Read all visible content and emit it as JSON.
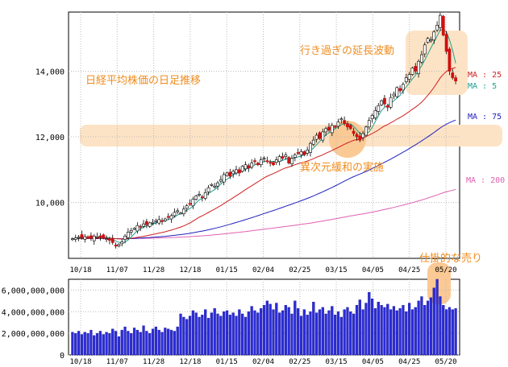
{
  "chart_data": [
    {
      "type": "candlestick",
      "ylim": [
        8300,
        15800
      ],
      "y_ticks": [
        "10,000",
        "12,000",
        "14,000"
      ],
      "y_tick_values": [
        10000,
        12000,
        14000
      ],
      "x_ticks": [
        "10/18",
        "11/07",
        "11/28",
        "12/18",
        "01/15",
        "02/04",
        "02/25",
        "03/15",
        "04/05",
        "04/25",
        "05/20"
      ],
      "close": [
        8900,
        8920,
        8950,
        8930,
        8960,
        8940,
        8910,
        8980,
        8960,
        8940,
        8920,
        8900,
        8850,
        8780,
        8700,
        8720,
        8800,
        8980,
        9100,
        9150,
        9210,
        9300,
        9250,
        9350,
        9320,
        9380,
        9400,
        9450,
        9480,
        9420,
        9500,
        9550,
        9600,
        9700,
        9750,
        9680,
        9800,
        9900,
        9950,
        10100,
        10200,
        10250,
        10150,
        10300,
        10450,
        10550,
        10500,
        10600,
        10700,
        10850,
        10900,
        10800,
        10950,
        11000,
        10900,
        11100,
        11150,
        11050,
        11200,
        11250,
        11150,
        11300,
        11350,
        11250,
        11200,
        11150,
        11300,
        11400,
        11350,
        11450,
        11200,
        11350,
        11450,
        11500,
        11550,
        11450,
        11600,
        11800,
        11900,
        12050,
        11950,
        12150,
        12250,
        12200,
        12350,
        12300,
        12450,
        12550,
        12400,
        12300,
        12250,
        12100,
        12000,
        11900,
        12100,
        12300,
        12500,
        12650,
        12800,
        12950,
        13100,
        13000,
        12900,
        13200,
        13300,
        13500,
        13400,
        13600,
        13800,
        13900,
        14100,
        14000,
        14300,
        14500,
        14800,
        15000,
        14950,
        15200,
        15400,
        15700,
        15100,
        14600,
        14000,
        13800,
        13700
      ],
      "ma_labels": [
        "MA : 25",
        "MA : 5",
        "MA : 75",
        "MA : 200"
      ],
      "ma_colors": [
        "#d02020",
        "#20a090",
        "#2020c0",
        "#e060b0"
      ],
      "annotations": [
        "日経平均株価の日足推移",
        "行き過ぎの延長波動",
        "異次元緩和の実施"
      ]
    },
    {
      "type": "bar",
      "ylim": [
        0,
        7000000000
      ],
      "y_ticks": [
        "0",
        "2,000,000,000",
        "4,000,000,000",
        "6,000,000,000"
      ],
      "y_tick_values": [
        0,
        2000000000,
        4000000000,
        6000000000
      ],
      "x_ticks": [
        "10/18",
        "11/07",
        "11/28",
        "12/18",
        "01/15",
        "02/04",
        "02/25",
        "03/15",
        "04/05",
        "04/25",
        "05/20"
      ],
      "values": [
        2100000000,
        2000000000,
        2200000000,
        1900000000,
        2100000000,
        2000000000,
        2300000000,
        1800000000,
        2000000000,
        2200000000,
        1900000000,
        2100000000,
        2000000000,
        2400000000,
        2200000000,
        1700000000,
        2300000000,
        2600000000,
        2200000000,
        2000000000,
        2500000000,
        2300000000,
        2100000000,
        2700000000,
        2200000000,
        2000000000,
        2400000000,
        2600000000,
        2300000000,
        2100000000,
        2500000000,
        2400000000,
        2300000000,
        2200000000,
        2600000000,
        3800000000,
        3500000000,
        3300000000,
        3600000000,
        4100000000,
        3900000000,
        3500000000,
        3700000000,
        4200000000,
        3400000000,
        3900000000,
        4300000000,
        3800000000,
        3600000000,
        4000000000,
        4100000000,
        3700000000,
        3900000000,
        3600000000,
        4200000000,
        3800000000,
        3500000000,
        4000000000,
        4500000000,
        4100000000,
        3900000000,
        4300000000,
        4600000000,
        5000000000,
        4700000000,
        4200000000,
        4800000000,
        3900000000,
        4100000000,
        4600000000,
        4400000000,
        3800000000,
        5000000000,
        4300000000,
        3600000000,
        4200000000,
        3700000000,
        4000000000,
        4900000000,
        3900000000,
        4200000000,
        4400000000,
        3800000000,
        4100000000,
        4500000000,
        3700000000,
        4000000000,
        3500000000,
        4200000000,
        4400000000,
        4000000000,
        3800000000,
        4600000000,
        5100000000,
        4200000000,
        4800000000,
        5800000000,
        5200000000,
        4300000000,
        4900000000,
        4600000000,
        4400000000,
        4700000000,
        4200000000,
        4500000000,
        4100000000,
        4300000000,
        4600000000,
        4000000000,
        4800000000,
        4200000000,
        4400000000,
        5000000000,
        5400000000,
        4600000000,
        5000000000,
        5300000000,
        6200000000,
        7000000000,
        5400000000,
        4600000000,
        4200000000,
        4400000000,
        4200000000,
        4300000000
      ],
      "annotations": [
        "仕掛的な売り"
      ]
    }
  ]
}
